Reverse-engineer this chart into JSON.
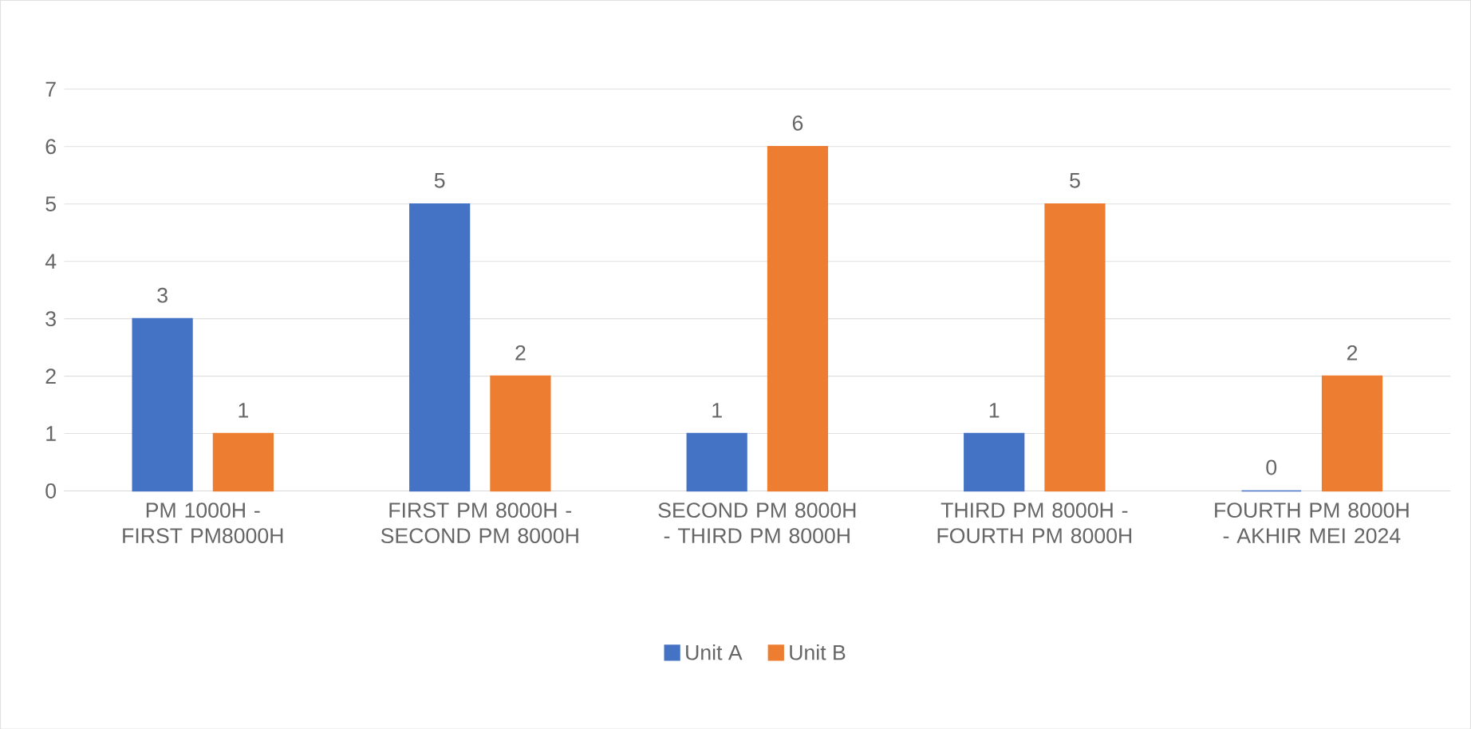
{
  "chart_data": {
    "type": "bar",
    "categories": [
      "PM 1000H - FIRST PM8000H",
      "FIRST PM 8000H - SECOND PM 8000H",
      "SECOND PM 8000H - THIRD PM 8000H",
      "THIRD PM 8000H - FOURTH PM 8000H",
      "FOURTH PM 8000H - AKHIR MEI 2024"
    ],
    "series": [
      {
        "name": "Unit A",
        "color": "#4472c4",
        "values": [
          3,
          5,
          1,
          1,
          0
        ]
      },
      {
        "name": "Unit B",
        "color": "#ed7d31",
        "values": [
          1,
          2,
          6,
          5,
          2
        ]
      }
    ],
    "ylim": [
      0,
      7
    ],
    "yticks": [
      0,
      1,
      2,
      3,
      4,
      5,
      6,
      7
    ],
    "grid": "y",
    "legend": "bottom",
    "data_labels": true
  }
}
